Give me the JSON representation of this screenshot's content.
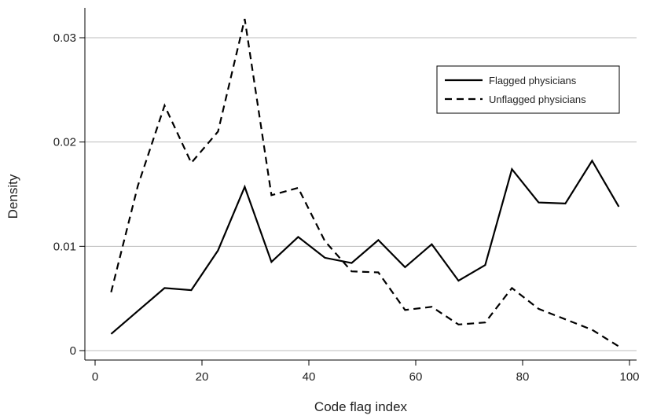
{
  "chart_data": {
    "type": "line",
    "xlabel": "Code flag index",
    "ylabel": "Density",
    "xlim": [
      -2,
      102
    ],
    "ylim": [
      0,
      0.0322
    ],
    "xticks": [
      0,
      20,
      40,
      60,
      80,
      100
    ],
    "yticks": [
      0,
      0.01,
      0.02,
      0.03
    ],
    "xtick_labels": [
      "0",
      "20",
      "40",
      "60",
      "80",
      "100"
    ],
    "ytick_labels": [
      "0",
      "0.01",
      "0.02",
      "0.03"
    ],
    "grid": "horizontal",
    "legend_position": "top-right",
    "x": [
      3,
      8,
      13,
      18,
      23,
      28,
      33,
      38,
      43,
      48,
      53,
      58,
      63,
      68,
      73,
      78,
      83,
      88,
      93,
      98
    ],
    "series": [
      {
        "name": "Flagged physicians",
        "line_style": "solid",
        "color": "#000000",
        "values": [
          0.0016,
          0.0038,
          0.006,
          0.0058,
          0.0096,
          0.0157,
          0.0085,
          0.0109,
          0.0089,
          0.0084,
          0.0106,
          0.008,
          0.0102,
          0.0067,
          0.0082,
          0.0174,
          0.0142,
          0.0141,
          0.0182,
          0.0138
        ]
      },
      {
        "name": "Unflagged physicians",
        "line_style": "dashed",
        "color": "#000000",
        "values": [
          0.0056,
          0.0158,
          0.0235,
          0.018,
          0.021,
          0.0318,
          0.0149,
          0.0156,
          0.0105,
          0.0076,
          0.0075,
          0.0039,
          0.0042,
          0.0025,
          0.0027,
          0.006,
          0.004,
          0.003,
          0.002,
          0.0004
        ]
      }
    ]
  }
}
